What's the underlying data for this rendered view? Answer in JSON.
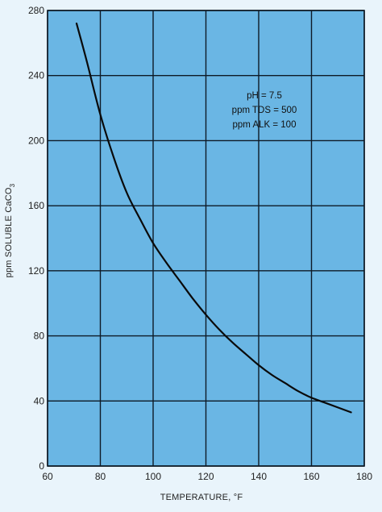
{
  "chart_data": {
    "type": "line",
    "title": "",
    "xlabel": "TEMPERATURE, °F",
    "ylabel": "ppm SOLUBLE CaCO",
    "ylabel_subscript": "3",
    "xlim": [
      60,
      180
    ],
    "ylim": [
      0,
      280
    ],
    "x_ticks": [
      60,
      80,
      100,
      120,
      140,
      160,
      180
    ],
    "y_ticks": [
      0,
      40,
      80,
      120,
      160,
      200,
      240,
      280
    ],
    "grid": true,
    "annotations": [
      "pH = 7.5",
      "ppm TDS = 500",
      "ppm ALK = 100"
    ],
    "series": [
      {
        "x": [
          71,
          75,
          80,
          85,
          90,
          95,
          100,
          105,
          110,
          115,
          120,
          125,
          130,
          135,
          140,
          145,
          150,
          155,
          160,
          165,
          170,
          175
        ],
        "y": [
          272,
          248,
          216,
          190,
          168,
          152,
          137,
          125,
          114,
          103,
          93,
          84,
          76,
          69,
          62,
          56,
          51,
          46,
          42,
          39,
          36,
          33
        ]
      }
    ],
    "colors": {
      "plot_bg": "#6ab6e4",
      "grid": "#0e1a26",
      "line": "#0a0a0a"
    }
  }
}
